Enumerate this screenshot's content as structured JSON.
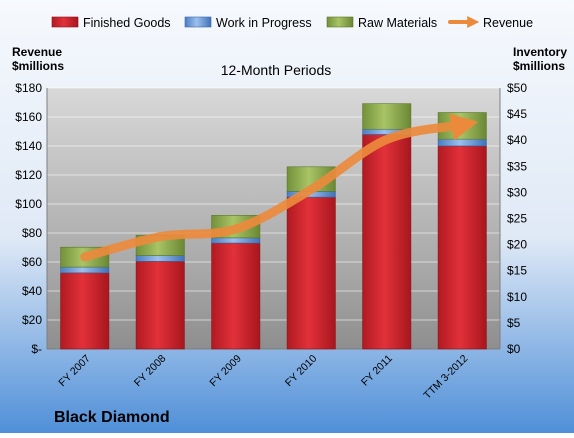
{
  "colors": {
    "finished_goods": "#d0232b",
    "work_in_progress": "#5b8fd6",
    "raw_materials": "#8aa84a",
    "revenue": "#ec8a3c",
    "background_top": "#f6f9fd",
    "background_bottom": "#4f8fd8",
    "plot_top": "#d8d8d8",
    "plot_bottom": "#8e8e8e"
  },
  "chart_data": {
    "type": "bar",
    "title": "12-Month Periods",
    "company": "Black Diamond",
    "categories": [
      "FY 2007",
      "FY 2008",
      "FY 2009",
      "FY 2010",
      "FY 2011",
      "TTM 3-2012"
    ],
    "left_axis": {
      "label_line1": "Revenue",
      "label_line2": "$millions",
      "ylim": [
        0,
        180
      ],
      "ticks": [
        0,
        20,
        40,
        60,
        80,
        100,
        120,
        140,
        160,
        180
      ],
      "tick_labels": [
        "$-",
        "$20",
        "$40",
        "$60",
        "$80",
        "$100",
        "$120",
        "$140",
        "$160",
        "$180"
      ]
    },
    "right_axis": {
      "label_line1": "Inventory",
      "label_line2": "$millions",
      "ylim": [
        0,
        50
      ],
      "ticks": [
        0,
        5,
        10,
        15,
        20,
        25,
        30,
        35,
        40,
        45,
        50
      ],
      "tick_labels": [
        "$0",
        "$5",
        "$10",
        "$15",
        "$20",
        "$25",
        "$30",
        "$35",
        "$40",
        "$45",
        "$50"
      ]
    },
    "inventory_series": [
      {
        "name": "Finished Goods",
        "axis": "right",
        "values": [
          14.6,
          16.8,
          20.3,
          29.1,
          41.1,
          38.9
        ]
      },
      {
        "name": "Work in Progress",
        "axis": "right",
        "values": [
          1.1,
          1.1,
          1.0,
          1.1,
          1.0,
          1.3
        ]
      },
      {
        "name": "Raw Materials",
        "axis": "right",
        "values": [
          3.8,
          3.9,
          4.3,
          4.7,
          4.9,
          5.1
        ]
      }
    ],
    "line_series": [
      {
        "name": "Revenue",
        "axis": "left",
        "values": [
          63.5,
          77.5,
          82.8,
          110.0,
          144.5,
          154.5
        ]
      }
    ],
    "grid": true,
    "legend_position": "top"
  }
}
